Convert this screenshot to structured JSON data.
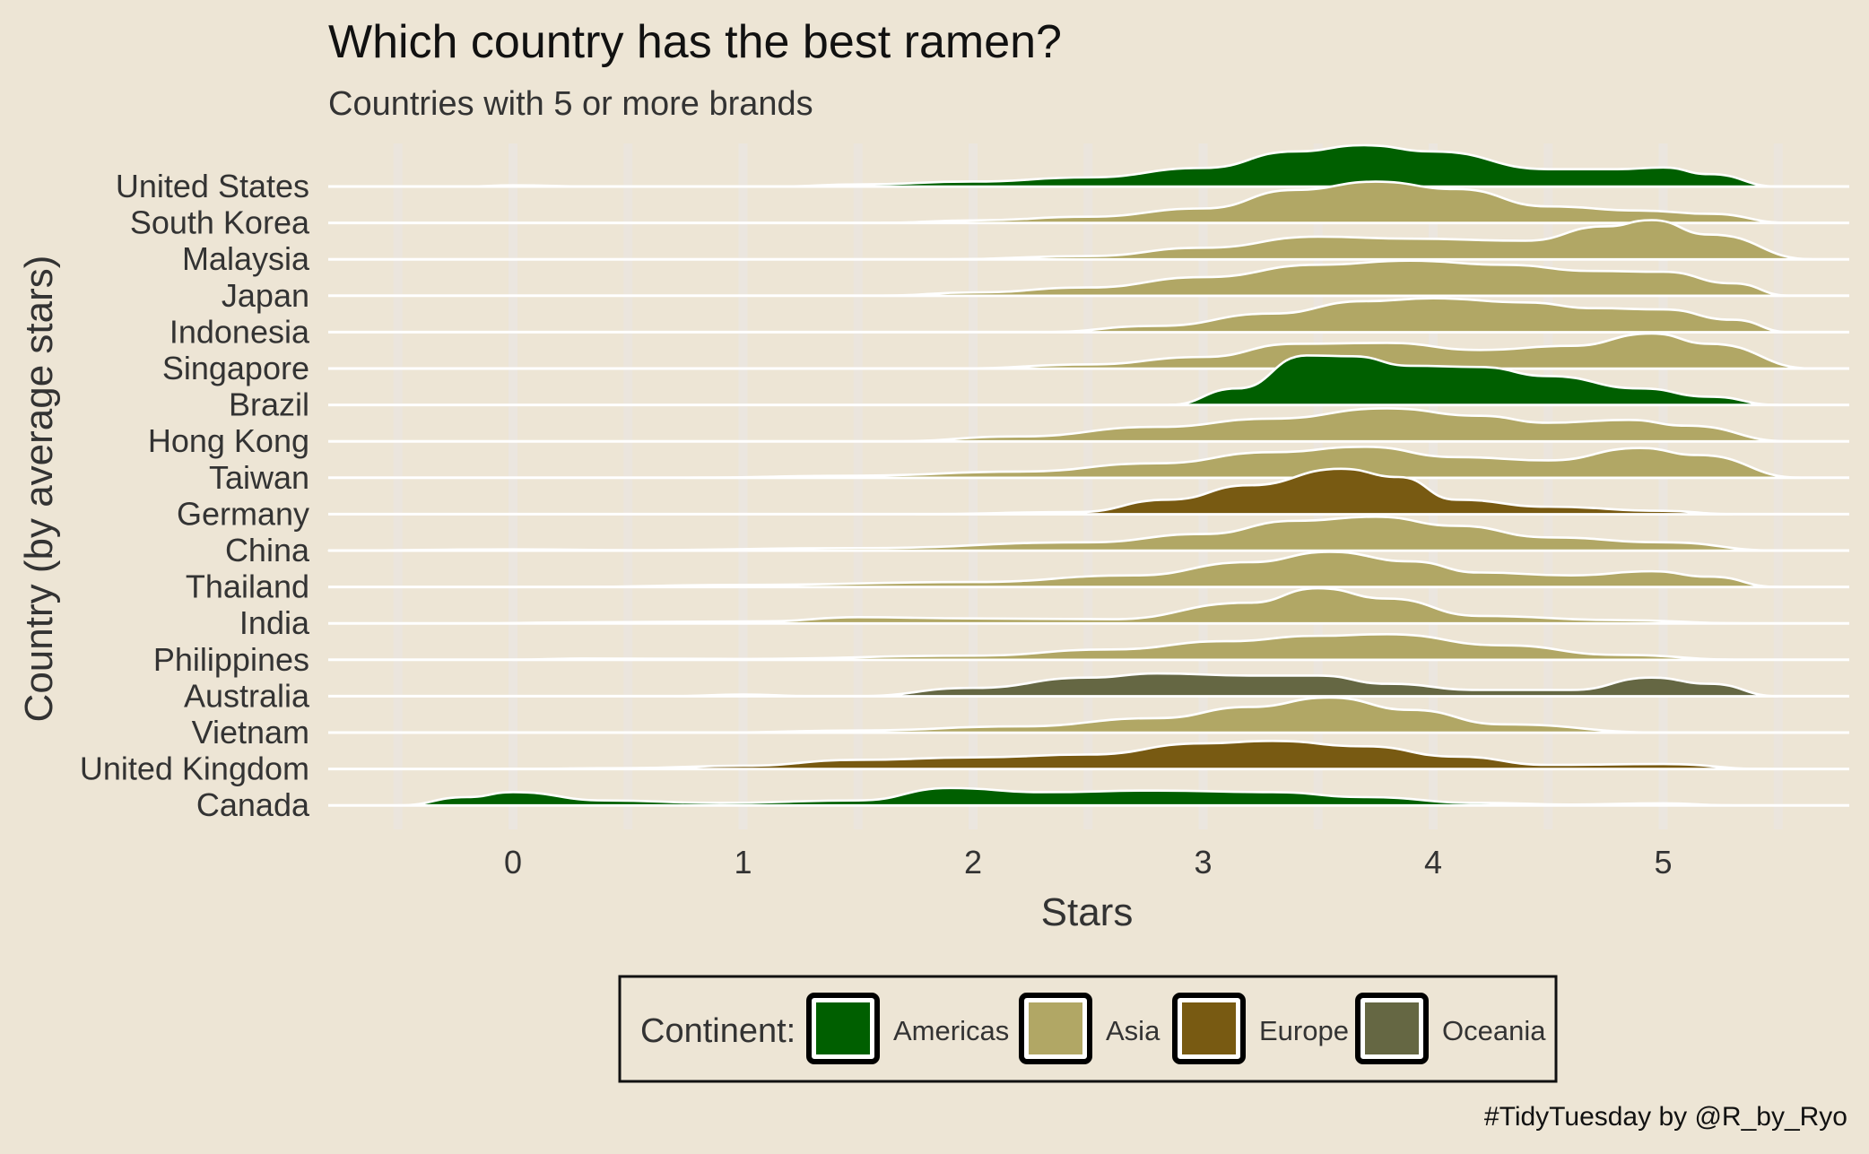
{
  "chart_data": {
    "type": "ridgeline",
    "title": "Which country has the best ramen?",
    "subtitle": "Countries with 5 or more brands",
    "xlabel": "Stars",
    "ylabel": "Country (by average stars)",
    "caption": "#TidyTuesday by @R_by_Ryo",
    "xlim": [
      -0.8,
      5.8
    ],
    "xticks": [
      0,
      1,
      2,
      3,
      4,
      5
    ],
    "grid": true,
    "legend": {
      "title": "Continent:",
      "position": "bottom",
      "entries": [
        {
          "label": "Americas",
          "color": "#005f00"
        },
        {
          "label": "Asia",
          "color": "#b1a765"
        },
        {
          "label": "Europe",
          "color": "#785a12"
        },
        {
          "label": "Oceania",
          "color": "#656743"
        }
      ]
    },
    "series": [
      {
        "name": "United States",
        "continent": "Americas",
        "range": [
          -0.2,
          5.5
        ],
        "density": [
          [
            -0.2,
            0
          ],
          [
            0,
            0.03
          ],
          [
            0.35,
            0
          ],
          [
            1.15,
            0
          ],
          [
            1.5,
            0.05
          ],
          [
            2,
            0.12
          ],
          [
            2.5,
            0.22
          ],
          [
            3,
            0.45
          ],
          [
            3.4,
            0.85
          ],
          [
            3.7,
            1
          ],
          [
            4,
            0.85
          ],
          [
            4.5,
            0.42
          ],
          [
            4.8,
            0.42
          ],
          [
            5,
            0.46
          ],
          [
            5.2,
            0.3
          ],
          [
            5.5,
            0
          ]
        ]
      },
      {
        "name": "South Korea",
        "continent": "Asia",
        "range": [
          1.6,
          5.55
        ],
        "density": [
          [
            1.6,
            0
          ],
          [
            2,
            0.06
          ],
          [
            2.5,
            0.15
          ],
          [
            3,
            0.35
          ],
          [
            3.4,
            0.8
          ],
          [
            3.75,
            1
          ],
          [
            4.1,
            0.82
          ],
          [
            4.5,
            0.4
          ],
          [
            4.9,
            0.3
          ],
          [
            5.2,
            0.22
          ],
          [
            5.55,
            0
          ]
        ]
      },
      {
        "name": "Malaysia",
        "continent": "Asia",
        "range": [
          1.9,
          5.65
        ],
        "density": [
          [
            1.9,
            0
          ],
          [
            2.5,
            0.08
          ],
          [
            3,
            0.28
          ],
          [
            3.5,
            0.55
          ],
          [
            3.9,
            0.5
          ],
          [
            4.4,
            0.45
          ],
          [
            4.75,
            0.8
          ],
          [
            4.95,
            0.95
          ],
          [
            5.2,
            0.6
          ],
          [
            5.65,
            0
          ]
        ]
      },
      {
        "name": "Japan",
        "continent": "Asia",
        "range": [
          1.6,
          5.55
        ],
        "density": [
          [
            1.6,
            0
          ],
          [
            2,
            0.08
          ],
          [
            2.5,
            0.2
          ],
          [
            3,
            0.45
          ],
          [
            3.5,
            0.75
          ],
          [
            3.9,
            0.85
          ],
          [
            4.3,
            0.75
          ],
          [
            4.7,
            0.6
          ],
          [
            5,
            0.58
          ],
          [
            5.3,
            0.3
          ],
          [
            5.55,
            0
          ]
        ]
      },
      {
        "name": "Indonesia",
        "continent": "Asia",
        "range": [
          2.3,
          5.55
        ],
        "density": [
          [
            2.3,
            0
          ],
          [
            2.8,
            0.15
          ],
          [
            3.3,
            0.45
          ],
          [
            3.7,
            0.75
          ],
          [
            4,
            0.82
          ],
          [
            4.4,
            0.72
          ],
          [
            4.7,
            0.58
          ],
          [
            5,
            0.55
          ],
          [
            5.3,
            0.3
          ],
          [
            5.55,
            0
          ]
        ]
      },
      {
        "name": "Singapore",
        "continent": "Asia",
        "range": [
          1.95,
          5.65
        ],
        "density": [
          [
            1.95,
            0
          ],
          [
            2.5,
            0.1
          ],
          [
            3,
            0.28
          ],
          [
            3.4,
            0.6
          ],
          [
            3.8,
            0.62
          ],
          [
            4.2,
            0.45
          ],
          [
            4.6,
            0.55
          ],
          [
            4.95,
            0.85
          ],
          [
            5.2,
            0.6
          ],
          [
            5.65,
            0
          ]
        ]
      },
      {
        "name": "Brazil",
        "continent": "Americas",
        "range": [
          2.85,
          5.5
        ],
        "density": [
          [
            2.85,
            0
          ],
          [
            3.15,
            0.4
          ],
          [
            3.45,
            1.2
          ],
          [
            3.65,
            1.18
          ],
          [
            3.9,
            0.95
          ],
          [
            4.2,
            0.92
          ],
          [
            4.5,
            0.7
          ],
          [
            4.9,
            0.4
          ],
          [
            5.2,
            0.2
          ],
          [
            5.5,
            0
          ]
        ]
      },
      {
        "name": "Hong Kong",
        "continent": "Asia",
        "range": [
          1.65,
          5.55
        ],
        "density": [
          [
            1.65,
            0
          ],
          [
            2.2,
            0.12
          ],
          [
            2.8,
            0.35
          ],
          [
            3.3,
            0.55
          ],
          [
            3.8,
            0.8
          ],
          [
            4.2,
            0.62
          ],
          [
            4.5,
            0.45
          ],
          [
            4.85,
            0.52
          ],
          [
            5.1,
            0.38
          ],
          [
            5.55,
            0
          ]
        ]
      },
      {
        "name": "Taiwan",
        "continent": "Asia",
        "range": [
          0.75,
          5.6
        ],
        "density": [
          [
            0.75,
            0
          ],
          [
            1.5,
            0.05
          ],
          [
            2.2,
            0.15
          ],
          [
            2.8,
            0.35
          ],
          [
            3.3,
            0.62
          ],
          [
            3.7,
            0.75
          ],
          [
            4.1,
            0.5
          ],
          [
            4.5,
            0.42
          ],
          [
            4.9,
            0.72
          ],
          [
            5.15,
            0.55
          ],
          [
            5.6,
            0
          ]
        ]
      },
      {
        "name": "Germany",
        "continent": "Europe",
        "range": [
          1.75,
          5.3
        ],
        "density": [
          [
            1.75,
            0
          ],
          [
            2.45,
            0.05
          ],
          [
            2.85,
            0.35
          ],
          [
            3.2,
            0.7
          ],
          [
            3.6,
            1.1
          ],
          [
            3.85,
            0.9
          ],
          [
            4.1,
            0.35
          ],
          [
            4.5,
            0.18
          ],
          [
            5,
            0.08
          ],
          [
            5.3,
            0
          ]
        ]
      },
      {
        "name": "China",
        "continent": "Asia",
        "range": [
          -0.8,
          5.5
        ],
        "density": [
          [
            -0.8,
            0
          ],
          [
            0,
            0.03
          ],
          [
            0.5,
            0.01
          ],
          [
            1.5,
            0.06
          ],
          [
            2.5,
            0.2
          ],
          [
            3,
            0.4
          ],
          [
            3.4,
            0.72
          ],
          [
            3.75,
            0.82
          ],
          [
            4.1,
            0.6
          ],
          [
            4.5,
            0.32
          ],
          [
            5,
            0.2
          ],
          [
            5.5,
            0
          ]
        ]
      },
      {
        "name": "Thailand",
        "continent": "Asia",
        "range": [
          0.25,
          5.5
        ],
        "density": [
          [
            0.25,
            0
          ],
          [
            1,
            0.05
          ],
          [
            2,
            0.12
          ],
          [
            2.7,
            0.28
          ],
          [
            3.2,
            0.6
          ],
          [
            3.55,
            0.85
          ],
          [
            3.9,
            0.62
          ],
          [
            4.2,
            0.35
          ],
          [
            4.6,
            0.28
          ],
          [
            4.95,
            0.38
          ],
          [
            5.2,
            0.25
          ],
          [
            5.5,
            0
          ]
        ]
      },
      {
        "name": "India",
        "continent": "Asia",
        "range": [
          -0.15,
          5.35
        ],
        "density": [
          [
            -0.15,
            0
          ],
          [
            0.2,
            0.02
          ],
          [
            1.1,
            0.05
          ],
          [
            1.5,
            0.15
          ],
          [
            2,
            0.12
          ],
          [
            2.6,
            0.1
          ],
          [
            3.2,
            0.5
          ],
          [
            3.5,
            0.85
          ],
          [
            3.8,
            0.6
          ],
          [
            4.2,
            0.18
          ],
          [
            4.8,
            0.08
          ],
          [
            5.35,
            0
          ]
        ]
      },
      {
        "name": "Philippines",
        "continent": "Asia",
        "range": [
          0,
          5.35
        ],
        "density": [
          [
            0,
            0
          ],
          [
            0.3,
            0.03
          ],
          [
            1,
            0.02
          ],
          [
            2,
            0.1
          ],
          [
            2.6,
            0.25
          ],
          [
            3.1,
            0.45
          ],
          [
            3.5,
            0.58
          ],
          [
            3.8,
            0.62
          ],
          [
            4.3,
            0.35
          ],
          [
            4.8,
            0.12
          ],
          [
            5.35,
            0
          ]
        ]
      },
      {
        "name": "Australia",
        "continent": "Oceania",
        "range": [
          0.7,
          5.5
        ],
        "density": [
          [
            0.7,
            0
          ],
          [
            1,
            0.04
          ],
          [
            1.3,
            0
          ],
          [
            1.5,
            0
          ],
          [
            2,
            0.2
          ],
          [
            2.5,
            0.45
          ],
          [
            2.8,
            0.55
          ],
          [
            3.2,
            0.5
          ],
          [
            3.5,
            0.5
          ],
          [
            3.8,
            0.3
          ],
          [
            4.2,
            0.15
          ],
          [
            4.6,
            0.15
          ],
          [
            4.95,
            0.45
          ],
          [
            5.2,
            0.3
          ],
          [
            5.5,
            0
          ]
        ]
      },
      {
        "name": "Vietnam",
        "continent": "Asia",
        "range": [
          0.9,
          5.0
        ],
        "density": [
          [
            0.9,
            0
          ],
          [
            1.5,
            0.05
          ],
          [
            2.2,
            0.15
          ],
          [
            2.8,
            0.35
          ],
          [
            3.2,
            0.62
          ],
          [
            3.55,
            0.85
          ],
          [
            3.9,
            0.55
          ],
          [
            4.3,
            0.2
          ],
          [
            5,
            0
          ]
        ]
      },
      {
        "name": "United Kingdom",
        "continent": "Europe",
        "range": [
          -0.05,
          5.45
        ],
        "density": [
          [
            -0.05,
            0
          ],
          [
            0.5,
            0.02
          ],
          [
            1,
            0.08
          ],
          [
            1.5,
            0.22
          ],
          [
            2,
            0.28
          ],
          [
            2.5,
            0.35
          ],
          [
            3,
            0.62
          ],
          [
            3.3,
            0.68
          ],
          [
            3.7,
            0.55
          ],
          [
            4.1,
            0.3
          ],
          [
            4.5,
            0.1
          ],
          [
            5,
            0.12
          ],
          [
            5.45,
            0
          ]
        ]
      },
      {
        "name": "Canada",
        "continent": "Americas",
        "range": [
          -0.5,
          5.3
        ],
        "density": [
          [
            -0.5,
            0
          ],
          [
            -0.2,
            0.2
          ],
          [
            0,
            0.32
          ],
          [
            0.4,
            0.12
          ],
          [
            0.9,
            0.06
          ],
          [
            1.5,
            0.12
          ],
          [
            1.9,
            0.42
          ],
          [
            2.3,
            0.32
          ],
          [
            2.8,
            0.36
          ],
          [
            3.3,
            0.32
          ],
          [
            3.7,
            0.2
          ],
          [
            4.2,
            0.06
          ],
          [
            4.6,
            0.02
          ],
          [
            5,
            0.05
          ],
          [
            5.3,
            0
          ]
        ]
      }
    ]
  }
}
